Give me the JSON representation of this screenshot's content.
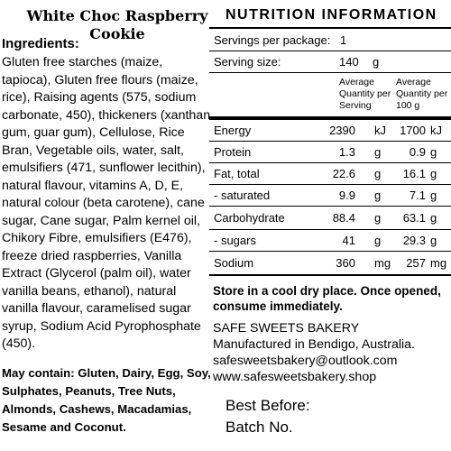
{
  "product": {
    "title": "White Choc Raspberry Cookie"
  },
  "ingredients": {
    "heading": "Ingredients:",
    "text": "Gluten free starches (maize, tapioca), Gluten free flours (maize, rice), Raising agents (575, sodium carbonate, 450), thickeners (xanthan gum, guar gum), Cellulose, Rice Bran, Vegetable oils, water, salt, emulsifiers (471, sunflower lecithin), natural flavour, vitamins A, D, E, natural colour (beta carotene), cane sugar, Cane sugar, Palm kernel oil, Chikory Fibre, emulsifiers (E476), freeze dried raspberries, Vanilla Extract (Glycerol (palm oil), water vanilla beans, ethanol), natural vanilla flavour, caramelised sugar syrup, Sodium Acid Pyrophosphate (450).",
    "allergens": "May contain: Gluten, Dairy, Egg, Soy, Sulphates, Peanuts, Tree Nuts, Almonds, Cashews, Macadamias, Sesame and Coconut."
  },
  "nutrition": {
    "title": "NUTRITION INFORMATION",
    "servings_label": "Servings per package:",
    "servings_value": "1",
    "serving_size_label": "Serving size:",
    "serving_size_value": "140",
    "serving_size_unit": "g",
    "col_per_serving": "Average Quantity per Serving",
    "col_per_100g": "Average Quantity per 100 g",
    "rows": [
      {
        "label": "Energy",
        "serving": "2390",
        "serving_unit": "kJ",
        "per100": "1700",
        "per100_unit": "kJ"
      },
      {
        "label": "Protein",
        "serving": "1.3",
        "serving_unit": "g",
        "per100": "0.9",
        "per100_unit": "g"
      },
      {
        "label": "Fat, total",
        "serving": "22.6",
        "serving_unit": "g",
        "per100": "16.1",
        "per100_unit": "g"
      },
      {
        "label": "- saturated",
        "serving": "9.9",
        "serving_unit": "g",
        "per100": "7.1",
        "per100_unit": "g"
      },
      {
        "label": "Carbohydrate",
        "serving": "88.4",
        "serving_unit": "g",
        "per100": "63.1",
        "per100_unit": "g"
      },
      {
        "label": "- sugars",
        "serving": "41",
        "serving_unit": "g",
        "per100": "29.3",
        "per100_unit": "g"
      },
      {
        "label": "Sodium",
        "serving": "360",
        "serving_unit": "mg",
        "per100": "257",
        "per100_unit": "mg"
      }
    ]
  },
  "storage": "Store in a cool dry place. Once opened, consume immediately.",
  "company": {
    "name": "SAFE SWEETS BAKERY",
    "location": "Manufactured in Bendigo, Australia.",
    "email": "safesweetsbakery@outlook.com",
    "website": "www.safesweetsbakery.shop"
  },
  "labels": {
    "best_before": "Best Before:",
    "batch_no": "Batch No."
  }
}
